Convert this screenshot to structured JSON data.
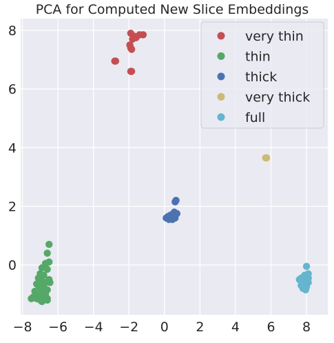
{
  "chart_data": {
    "type": "scatter",
    "title": "PCA for Computed New Slice Embeddings",
    "xlabel": "",
    "ylabel": "",
    "xlim": [
      -8.1,
      9.2
    ],
    "ylim": [
      -1.7,
      8.4
    ],
    "xticks": [
      -8,
      -6,
      -4,
      -2,
      0,
      2,
      4,
      6,
      8
    ],
    "yticks": [
      0,
      2,
      4,
      6,
      8
    ],
    "xtick_labels": [
      "−8",
      "−6",
      "−4",
      "−2",
      "0",
      "2",
      "4",
      "6",
      "8"
    ],
    "ytick_labels": [
      "0",
      "2",
      "4",
      "6",
      "8"
    ],
    "grid": true,
    "legend_position": "top-right",
    "series": [
      {
        "name": "very thin",
        "color": "#c44e52",
        "points": [
          [
            -1.9,
            7.9
          ],
          [
            -1.8,
            7.7
          ],
          [
            -1.7,
            7.8
          ],
          [
            -1.6,
            7.75
          ],
          [
            -1.4,
            7.85
          ],
          [
            -1.2,
            7.85
          ],
          [
            -1.95,
            7.5
          ],
          [
            -1.85,
            7.35
          ],
          [
            -1.9,
            7.4
          ],
          [
            -2.8,
            6.95
          ],
          [
            -2.75,
            6.95
          ],
          [
            -1.9,
            6.6
          ],
          [
            -1.85,
            6.6
          ]
        ]
      },
      {
        "name": "thin",
        "color": "#55a868",
        "points": [
          [
            -6.5,
            0.7
          ],
          [
            -6.6,
            0.4
          ],
          [
            -6.5,
            0.1
          ],
          [
            -6.7,
            0.05
          ],
          [
            -6.9,
            -0.1
          ],
          [
            -6.6,
            -0.15
          ],
          [
            -7.0,
            -0.3
          ],
          [
            -6.8,
            -0.35
          ],
          [
            -7.1,
            -0.45
          ],
          [
            -6.5,
            -0.5
          ],
          [
            -6.9,
            -0.55
          ],
          [
            -6.7,
            -0.6
          ],
          [
            -6.45,
            -0.6
          ],
          [
            -7.2,
            -0.65
          ],
          [
            -6.8,
            -0.75
          ],
          [
            -7.0,
            -0.8
          ],
          [
            -6.6,
            -0.85
          ],
          [
            -7.3,
            -0.9
          ],
          [
            -6.9,
            -0.95
          ],
          [
            -6.7,
            -1.0
          ],
          [
            -7.1,
            -1.05
          ],
          [
            -7.4,
            -1.1
          ],
          [
            -6.8,
            -1.1
          ],
          [
            -7.2,
            -1.15
          ],
          [
            -6.6,
            -1.15
          ],
          [
            -7.0,
            -1.2
          ],
          [
            -7.5,
            -1.15
          ],
          [
            -6.9,
            -1.25
          ],
          [
            -6.6,
            -1.2
          ],
          [
            -7.1,
            -0.7
          ]
        ]
      },
      {
        "name": "thick",
        "color": "#4c72b0",
        "points": [
          [
            0.65,
            2.2
          ],
          [
            0.6,
            2.15
          ],
          [
            0.55,
            1.8
          ],
          [
            0.7,
            1.75
          ],
          [
            0.4,
            1.7
          ],
          [
            0.5,
            1.65
          ],
          [
            0.2,
            1.65
          ],
          [
            0.1,
            1.6
          ],
          [
            0.3,
            1.6
          ],
          [
            0.45,
            1.55
          ],
          [
            0.6,
            1.6
          ],
          [
            0.25,
            1.55
          ],
          [
            0.35,
            1.7
          ]
        ]
      },
      {
        "name": "very thick",
        "color": "#ccb974",
        "points": [
          [
            5.7,
            3.65
          ],
          [
            5.75,
            3.65
          ]
        ]
      },
      {
        "name": "full",
        "color": "#64b5cd",
        "points": [
          [
            8.0,
            -0.05
          ],
          [
            8.1,
            -0.3
          ],
          [
            7.9,
            -0.35
          ],
          [
            8.0,
            -0.4
          ],
          [
            7.7,
            -0.45
          ],
          [
            8.1,
            -0.45
          ],
          [
            7.85,
            -0.5
          ],
          [
            7.6,
            -0.5
          ],
          [
            8.0,
            -0.55
          ],
          [
            7.75,
            -0.6
          ],
          [
            8.1,
            -0.6
          ],
          [
            7.9,
            -0.65
          ],
          [
            7.7,
            -0.7
          ],
          [
            8.0,
            -0.75
          ],
          [
            7.8,
            -0.8
          ],
          [
            7.95,
            -0.85
          ],
          [
            7.75,
            -0.55
          ],
          [
            8.05,
            -0.5
          ]
        ]
      }
    ]
  }
}
